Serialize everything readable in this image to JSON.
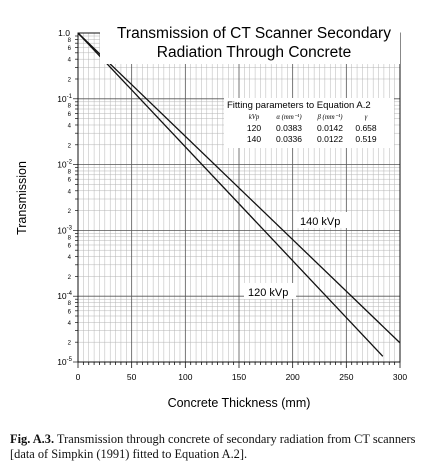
{
  "chart_data": {
    "type": "line",
    "title_lines": [
      "Transmission of CT Scanner Secondary",
      "Radiation Through Concrete"
    ],
    "xlabel": "Concrete Thickness (mm)",
    "ylabel": "Transmission",
    "x_ticks": [
      0,
      50,
      100,
      150,
      200,
      250,
      300
    ],
    "xlim": [
      0,
      300
    ],
    "ylim": [
      1e-05,
      1.0
    ],
    "y_scale": "log",
    "y_decades": [
      {
        "value": 1,
        "mantissa": "1.0",
        "exp": ""
      },
      {
        "value": 0.1,
        "mantissa": "10",
        "exp": "-1"
      },
      {
        "value": 0.01,
        "mantissa": "10",
        "exp": "-2"
      },
      {
        "value": 0.001,
        "mantissa": "10",
        "exp": "-3"
      },
      {
        "value": 0.0001,
        "mantissa": "10",
        "exp": "-4"
      },
      {
        "value": 1e-05,
        "mantissa": "10",
        "exp": "-5"
      }
    ],
    "y_minor_labels": [
      "2",
      "4",
      "6",
      "8"
    ],
    "grid": true,
    "series": [
      {
        "name": "140 kVp",
        "x": [
          0,
          300
        ],
        "y": [
          1.0,
          1.95e-05
        ]
      },
      {
        "name": "120 kVp",
        "x": [
          0,
          284
        ],
        "y": [
          1.0,
          1.22e-05
        ]
      }
    ],
    "fit_table": {
      "title": "Fitting parameters to Equation A.2",
      "headers": [
        "kVp",
        "α (mm⁻¹)",
        "β (mm⁻¹)",
        "γ"
      ],
      "rows": [
        [
          "120",
          "0.0383",
          "0.0142",
          "0.658"
        ],
        [
          "140",
          "0.0336",
          "0.0122",
          "0.519"
        ]
      ]
    }
  },
  "caption": {
    "label": "Fig. A.3.",
    "text": " Transmission through concrete of secondary radiation from CT scanners [data of Simpkin (1991) fitted to Equation A.2]."
  }
}
